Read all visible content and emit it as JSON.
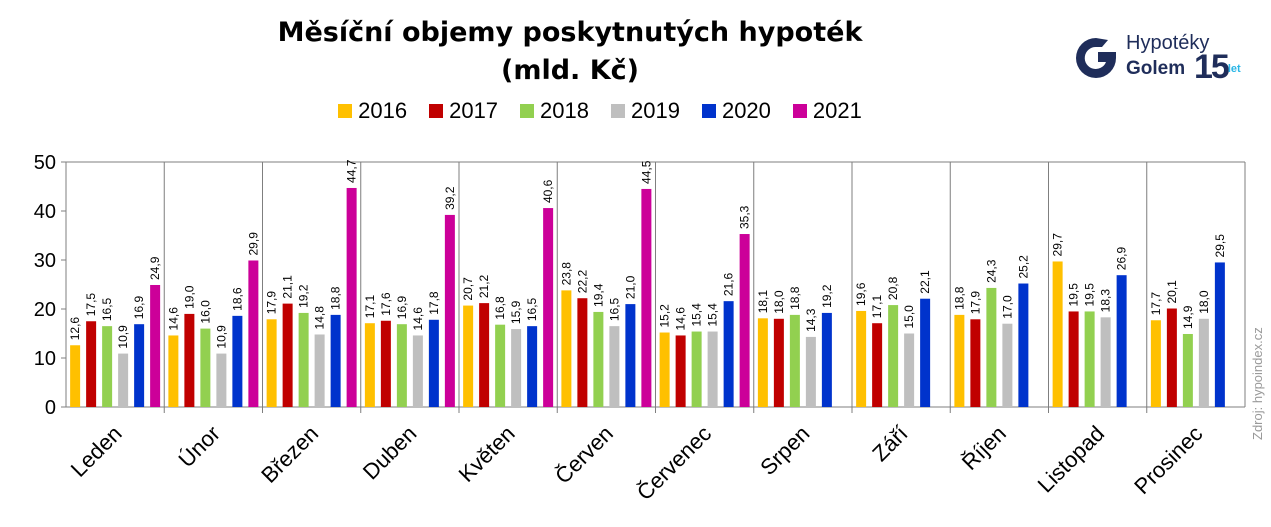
{
  "brand": {
    "line1": "Hypotéky",
    "line2": "Golem",
    "anniversary": "15",
    "anniversary_suffix": "let",
    "colors": {
      "dark": "#1f2d5a",
      "cyan": "#29b6e6",
      "red": "#e53935",
      "green": "#7cc242"
    }
  },
  "source": "Zdroj: hypoindex.cz",
  "chart_data": {
    "type": "bar",
    "title": "Měsíční objemy poskytnutých hypoték",
    "subtitle": "(mld. Kč)",
    "xlabel": "",
    "ylabel": "",
    "ylim": [
      0,
      50
    ],
    "yticks": [
      0,
      10,
      20,
      30,
      40,
      50
    ],
    "grid": false,
    "legend_position": "top",
    "categories": [
      "Leden",
      "Únor",
      "Březen",
      "Duben",
      "Květen",
      "Červen",
      "Červenec",
      "Srpen",
      "Září",
      "Říjen",
      "Listopad",
      "Prosinec"
    ],
    "series": [
      {
        "name": "2016",
        "color": "#ffc000",
        "values": [
          12.6,
          14.6,
          17.9,
          17.1,
          20.7,
          23.8,
          15.2,
          18.1,
          19.6,
          18.8,
          29.7,
          17.7
        ]
      },
      {
        "name": "2017",
        "color": "#c00000",
        "values": [
          17.5,
          19.0,
          21.1,
          17.6,
          21.2,
          22.2,
          14.6,
          18.0,
          17.1,
          17.9,
          19.5,
          20.1
        ]
      },
      {
        "name": "2018",
        "color": "#92d050",
        "values": [
          16.5,
          16.0,
          19.2,
          16.9,
          16.8,
          19.4,
          15.4,
          18.8,
          20.8,
          24.3,
          19.5,
          14.9
        ]
      },
      {
        "name": "2019",
        "color": "#bfbfbf",
        "values": [
          10.9,
          10.9,
          14.8,
          14.6,
          15.9,
          16.5,
          15.4,
          14.3,
          15.0,
          17.0,
          18.3,
          18.0
        ]
      },
      {
        "name": "2020",
        "color": "#0033cc",
        "values": [
          16.9,
          18.6,
          18.8,
          17.8,
          16.5,
          21.0,
          21.6,
          19.2,
          22.1,
          25.2,
          26.9,
          29.5
        ]
      },
      {
        "name": "2021",
        "color": "#cc0099",
        "values": [
          24.9,
          29.9,
          44.7,
          39.2,
          40.6,
          44.5,
          35.3,
          null,
          null,
          null,
          null,
          null
        ]
      }
    ]
  }
}
